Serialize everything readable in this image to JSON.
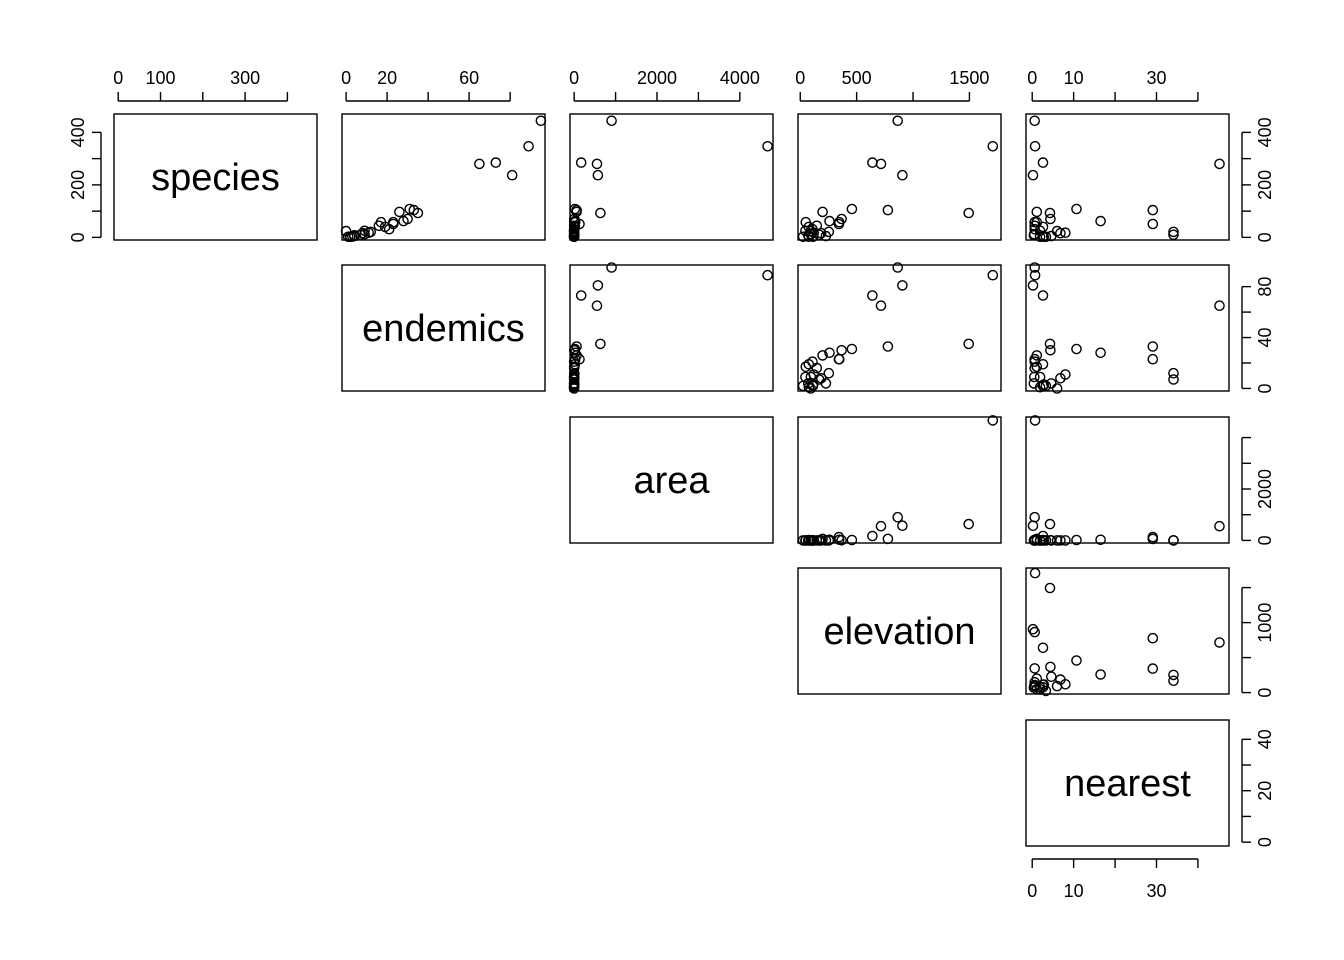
{
  "chart_data": {
    "type": "scatter",
    "subtype": "pairs-upper-triangle",
    "title": "",
    "variables": [
      "species",
      "endemics",
      "area",
      "elevation",
      "nearest"
    ],
    "axes": {
      "species": {
        "lim": [
          -10,
          470
        ],
        "ticks": [
          0,
          100,
          200,
          300,
          400
        ],
        "labels_top": [
          "0",
          "100",
          "300"
        ],
        "labels_right": [
          "0",
          "200",
          "400"
        ]
      },
      "endemics": {
        "lim": [
          -2,
          97
        ],
        "ticks": [
          0,
          20,
          40,
          60,
          80
        ],
        "labels_top": [
          "0",
          "20",
          "60"
        ],
        "labels_right": [
          "0",
          "40",
          "80"
        ]
      },
      "area": {
        "lim": [
          -100,
          4800
        ],
        "ticks": [
          0,
          1000,
          2000,
          3000,
          4000
        ],
        "labels_top": [
          "0",
          "2000",
          "4000"
        ],
        "labels_right": [
          "0",
          "2000"
        ]
      },
      "elevation": {
        "lim": [
          -20,
          1780
        ],
        "ticks": [
          0,
          500,
          1000,
          1500
        ],
        "labels_top": [
          "0",
          "500",
          "1500"
        ],
        "labels_right": [
          "0",
          "1000"
        ]
      },
      "nearest": {
        "lim": [
          -1.5,
          47.5
        ],
        "ticks": [
          0,
          10,
          20,
          30,
          40
        ],
        "labels_top": [
          "0",
          "10",
          "30"
        ],
        "labels_right": [
          "0",
          "20",
          "40"
        ]
      }
    },
    "grid": false,
    "legend": "none",
    "observations": [
      {
        "species": 58,
        "endemics": 23,
        "area": 25.09,
        "elevation": 346,
        "nearest": 0.6
      },
      {
        "species": 31,
        "endemics": 21,
        "area": 1.24,
        "elevation": 109,
        "nearest": 0.6
      },
      {
        "species": 3,
        "endemics": 3,
        "area": 0.21,
        "elevation": 114,
        "nearest": 2.8
      },
      {
        "species": 25,
        "endemics": 9,
        "area": 0.1,
        "elevation": 46,
        "nearest": 1.9
      },
      {
        "species": 2,
        "endemics": 1,
        "area": 0.05,
        "elevation": 77,
        "nearest": 1.9
      },
      {
        "species": 18,
        "endemics": 11,
        "area": 0.34,
        "elevation": 119,
        "nearest": 8.0
      },
      {
        "species": 24,
        "endemics": 0,
        "area": 0.08,
        "elevation": 93,
        "nearest": 6.0
      },
      {
        "species": 10,
        "endemics": 7,
        "area": 2.33,
        "elevation": 168,
        "nearest": 34.1
      },
      {
        "species": 8,
        "endemics": 4,
        "area": 0.03,
        "elevation": 71,
        "nearest": 0.4
      },
      {
        "species": 2,
        "endemics": 2,
        "area": 0.18,
        "elevation": 112,
        "nearest": 2.6
      },
      {
        "species": 97,
        "endemics": 26,
        "area": 58.27,
        "elevation": 198,
        "nearest": 1.1
      },
      {
        "species": 93,
        "endemics": 35,
        "area": 634.49,
        "elevation": 1494,
        "nearest": 4.3
      },
      {
        "species": 58,
        "endemics": 17,
        "area": 0.57,
        "elevation": 49,
        "nearest": 1.1
      },
      {
        "species": 5,
        "endemics": 4,
        "area": 0.78,
        "elevation": 227,
        "nearest": 4.6
      },
      {
        "species": 40,
        "endemics": 19,
        "area": 17.35,
        "elevation": 76,
        "nearest": 2.6
      },
      {
        "species": 347,
        "endemics": 89,
        "area": 4669.32,
        "elevation": 1707,
        "nearest": 0.7
      },
      {
        "species": 51,
        "endemics": 23,
        "area": 129.49,
        "elevation": 343,
        "nearest": 29.1
      },
      {
        "species": 2,
        "endemics": 2,
        "area": 0.01,
        "elevation": 25,
        "nearest": 3.3
      },
      {
        "species": 104,
        "endemics": 33,
        "area": 59.56,
        "elevation": 777,
        "nearest": 29.1
      },
      {
        "species": 108,
        "endemics": 31,
        "area": 17.95,
        "elevation": 458,
        "nearest": 10.7
      },
      {
        "species": 12,
        "endemics": 9,
        "area": 0.23,
        "elevation": 94,
        "nearest": 0.5
      },
      {
        "species": 70,
        "endemics": 30,
        "area": 4.89,
        "elevation": 367,
        "nearest": 4.4
      },
      {
        "species": 280,
        "endemics": 65,
        "area": 551.62,
        "elevation": 716,
        "nearest": 45.2
      },
      {
        "species": 237,
        "endemics": 81,
        "area": 572.33,
        "elevation": 906,
        "nearest": 0.2
      },
      {
        "species": 444,
        "endemics": 95,
        "area": 903.82,
        "elevation": 864,
        "nearest": 0.6
      },
      {
        "species": 62,
        "endemics": 28,
        "area": 24.08,
        "elevation": 259,
        "nearest": 16.5
      },
      {
        "species": 285,
        "endemics": 73,
        "area": 170.92,
        "elevation": 640,
        "nearest": 2.6
      },
      {
        "species": 44,
        "endemics": 16,
        "area": 1.84,
        "elevation": 147,
        "nearest": 0.6
      },
      {
        "species": 16,
        "endemics": 8,
        "area": 1.24,
        "elevation": 186,
        "nearest": 6.8
      },
      {
        "species": 21,
        "endemics": 12,
        "area": 2.85,
        "elevation": 253,
        "nearest": 34.1
      }
    ]
  }
}
